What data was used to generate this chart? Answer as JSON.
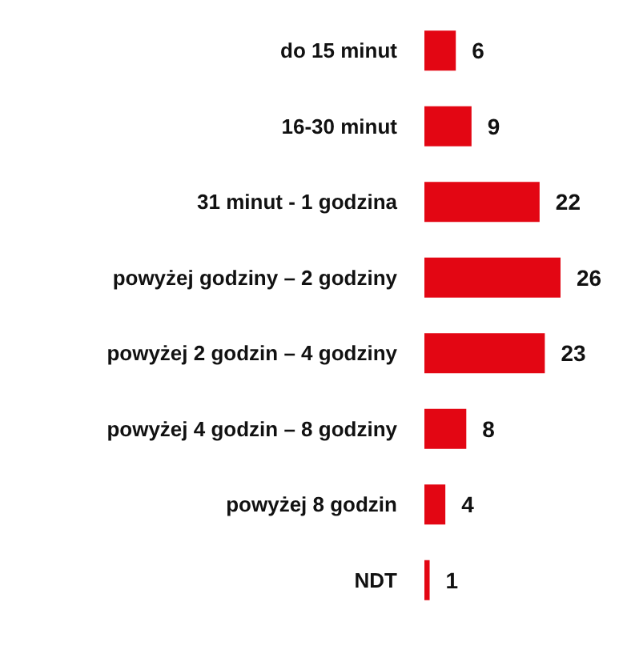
{
  "chart_data": {
    "type": "bar",
    "orientation": "horizontal",
    "categories": [
      "do 15 minut",
      "16-30 minut",
      "31 minut - 1 godzina",
      "powyżej godziny – 2 godziny",
      "powyżej 2 godzin – 4 godziny",
      "powyżej 4 godzin – 8 godziny",
      "powyżej 8 godzin",
      "NDT"
    ],
    "values": [
      6,
      9,
      22,
      26,
      23,
      8,
      4,
      1
    ],
    "color": "#e30613",
    "data_labels": true
  }
}
